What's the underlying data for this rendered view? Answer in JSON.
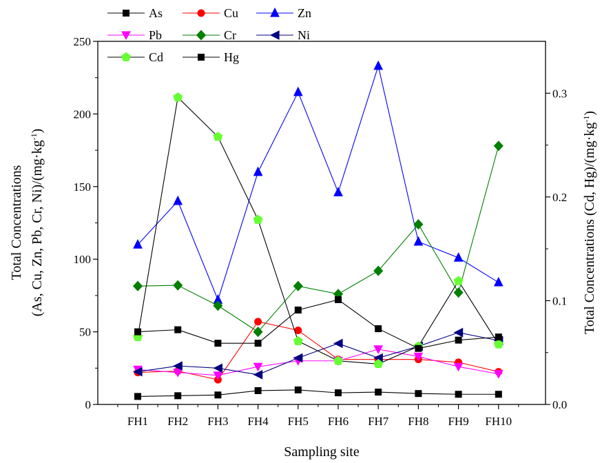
{
  "chart_data": {
    "type": "line",
    "xlabel": "Sampling site",
    "categories": [
      "FH1",
      "FH2",
      "FH3",
      "FH4",
      "FH5",
      "FH6",
      "FH7",
      "FH8",
      "FH9",
      "FH10"
    ],
    "left_axis": {
      "label_line1": "Total Concentrations",
      "label_line2": "(As, Cu, Zn, Pb, Cr, Ni)/(mg·kg",
      "label_sup": "-1",
      "label_close": ")",
      "ylim": [
        0,
        250
      ],
      "ticks": [
        0,
        50,
        100,
        150,
        200,
        250
      ]
    },
    "right_axis": {
      "label": "Total Concentrations  (Cd, Hg)/(mg·kg",
      "label_sup": "-1",
      "label_close": ")",
      "ylim": [
        0,
        0.35
      ],
      "ticks": [
        0.0,
        0.1,
        0.2,
        0.3
      ],
      "tick_labels": [
        "0.0",
        "0.1",
        "0.2",
        "0.3"
      ]
    },
    "series": [
      {
        "name": "As",
        "axis": "left",
        "color": "#000000",
        "line_color": "#000000",
        "marker": "square",
        "values": [
          5.5,
          6,
          6.5,
          9.5,
          10,
          8,
          8.5,
          7.5,
          7,
          7
        ]
      },
      {
        "name": "Cu",
        "axis": "left",
        "color": "#ff0000",
        "line_color": "#ff0000",
        "marker": "circle",
        "values": [
          22,
          23,
          17,
          57,
          51,
          31,
          31,
          31,
          29,
          22.5
        ]
      },
      {
        "name": "Zn",
        "axis": "left",
        "color": "#0000ff",
        "line_color": "#0000ff",
        "marker": "triangle-up",
        "values": [
          110,
          140,
          72,
          160,
          215,
          146,
          233,
          112,
          101,
          84
        ]
      },
      {
        "name": "Pb",
        "axis": "left",
        "color": "#ff00ff",
        "line_color": "#ff00ff",
        "marker": "triangle-down",
        "values": [
          24,
          22,
          20,
          26,
          30,
          30,
          38,
          33,
          26,
          21
        ]
      },
      {
        "name": "Cr",
        "axis": "left",
        "color": "#007f00",
        "line_color": "#007f00",
        "marker": "diamond",
        "values": [
          81.5,
          82,
          68,
          50,
          81.5,
          76,
          92,
          124,
          77,
          178
        ]
      },
      {
        "name": "Ni",
        "axis": "left",
        "color": "#000080",
        "line_color": "#000080",
        "marker": "triangle-left",
        "values": [
          22.5,
          26.5,
          25,
          20.5,
          32,
          42,
          32,
          40,
          49.5,
          44
        ]
      },
      {
        "name": "Cd",
        "axis": "right",
        "color": "#66ff33",
        "line_color": "#000000",
        "marker": "pentagon",
        "values": [
          0.065,
          0.296,
          0.258,
          0.178,
          0.061,
          0.042,
          0.039,
          0.056,
          0.119,
          0.058
        ]
      },
      {
        "name": "Hg",
        "axis": "right",
        "color": "#000000",
        "line_color": "#000000",
        "marker": "square",
        "values": [
          0.07,
          0.072,
          0.059,
          0.059,
          0.091,
          0.101,
          0.073,
          0.054,
          0.062,
          0.065
        ]
      }
    ],
    "legend_placement": "top-left",
    "grid": false
  }
}
